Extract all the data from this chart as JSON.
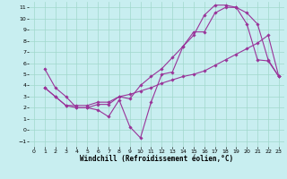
{
  "xlabel": "Windchill (Refroidissement éolien,°C)",
  "xlim": [
    -0.5,
    23.5
  ],
  "ylim": [
    -1.5,
    11.5
  ],
  "xticks": [
    0,
    1,
    2,
    3,
    4,
    5,
    6,
    7,
    8,
    9,
    10,
    11,
    12,
    13,
    14,
    15,
    16,
    17,
    18,
    19,
    20,
    21,
    22,
    23
  ],
  "yticks": [
    -1,
    0,
    1,
    2,
    3,
    4,
    5,
    6,
    7,
    8,
    9,
    10,
    11
  ],
  "bg_color": "#c8eef0",
  "grid_color": "#a0d8cc",
  "line_color": "#993399",
  "line1_x": [
    1,
    2,
    3,
    4,
    5,
    6,
    7,
    8,
    9,
    10,
    11,
    12,
    13,
    14,
    15,
    16,
    17,
    18,
    19,
    20,
    21,
    22,
    23
  ],
  "line1_y": [
    5.5,
    3.8,
    3.0,
    2.0,
    2.0,
    1.8,
    1.2,
    2.7,
    0.3,
    -0.7,
    2.5,
    5.0,
    5.2,
    7.5,
    8.5,
    10.3,
    11.2,
    11.2,
    11.0,
    9.5,
    6.3,
    6.2,
    4.8
  ],
  "line2_x": [
    1,
    2,
    3,
    4,
    5,
    6,
    7,
    8,
    9,
    10,
    11,
    12,
    13,
    14,
    15,
    16,
    17,
    18,
    19,
    20,
    21,
    22,
    23
  ],
  "line2_y": [
    3.8,
    3.0,
    2.2,
    2.0,
    2.0,
    2.3,
    2.3,
    3.0,
    2.8,
    4.0,
    4.8,
    5.5,
    6.5,
    7.5,
    8.8,
    8.8,
    10.5,
    11.0,
    11.0,
    10.5,
    9.5,
    6.3,
    4.8
  ],
  "line3_x": [
    1,
    2,
    3,
    4,
    5,
    6,
    7,
    8,
    9,
    10,
    11,
    12,
    13,
    14,
    15,
    16,
    17,
    18,
    19,
    20,
    21,
    22,
    23
  ],
  "line3_y": [
    3.8,
    3.0,
    2.2,
    2.2,
    2.2,
    2.5,
    2.5,
    3.0,
    3.2,
    3.5,
    3.8,
    4.2,
    4.5,
    4.8,
    5.0,
    5.3,
    5.8,
    6.3,
    6.8,
    7.3,
    7.8,
    8.5,
    4.8
  ],
  "marker": "D",
  "markersize": 1.8,
  "linewidth": 0.8,
  "tick_fontsize": 4.5,
  "label_fontsize": 5.5
}
